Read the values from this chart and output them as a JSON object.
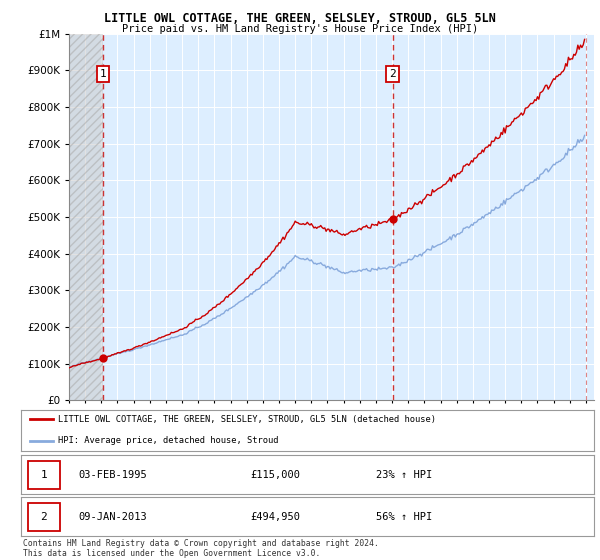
{
  "title": "LITTLE OWL COTTAGE, THE GREEN, SELSLEY, STROUD, GL5 5LN",
  "subtitle": "Price paid vs. HM Land Registry's House Price Index (HPI)",
  "legend_line1": "LITTLE OWL COTTAGE, THE GREEN, SELSLEY, STROUD, GL5 5LN (detached house)",
  "legend_line2": "HPI: Average price, detached house, Stroud",
  "sale1_date": "03-FEB-1995",
  "sale1_price": 115000,
  "sale1_pct": "23% ↑ HPI",
  "sale2_date": "09-JAN-2013",
  "sale2_price": 494950,
  "sale2_pct": "56% ↑ HPI",
  "footnote": "Contains HM Land Registry data © Crown copyright and database right 2024.\nThis data is licensed under the Open Government Licence v3.0.",
  "property_color": "#cc0000",
  "hpi_color": "#88aadd",
  "sale1_year": 1995.09,
  "sale2_year": 2013.03,
  "background_color": "#ddeeff",
  "xlim_start": 1993.0,
  "xlim_end": 2025.5
}
